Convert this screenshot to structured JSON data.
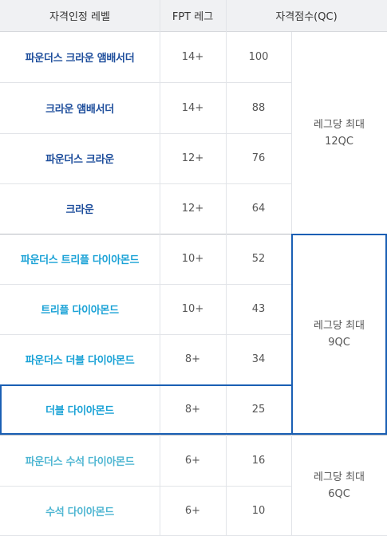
{
  "headers": {
    "level": "자격인정 레벨",
    "fpt_leg": "FPT 레그",
    "qc": "자격점수(QC)"
  },
  "rows": [
    {
      "level": "파운더스 크라운 앰배서더",
      "fpt": "14+",
      "qc": "100",
      "tier": "crown"
    },
    {
      "level": "크라운 앰배서더",
      "fpt": "14+",
      "qc": "88",
      "tier": "crown"
    },
    {
      "level": "파운더스 크라운",
      "fpt": "12+",
      "qc": "76",
      "tier": "crown"
    },
    {
      "level": "크라운",
      "fpt": "12+",
      "qc": "64",
      "tier": "crown"
    },
    {
      "level": "파운더스 트리플 다이아몬드",
      "fpt": "10+",
      "qc": "52",
      "tier": "diamond"
    },
    {
      "level": "트리플 다이아몬드",
      "fpt": "10+",
      "qc": "43",
      "tier": "diamond"
    },
    {
      "level": "파운더스 더블 다이아몬드",
      "fpt": "8+",
      "qc": "34",
      "tier": "diamond"
    },
    {
      "level": "더블 다이아몬드",
      "fpt": "8+",
      "qc": "25",
      "tier": "diamond"
    },
    {
      "level": "파운더스 수석 다이아몬드",
      "fpt": "6+",
      "qc": "16",
      "tier": "emerald"
    },
    {
      "level": "수석 다이아몬드",
      "fpt": "6+",
      "qc": "10",
      "tier": "emerald"
    }
  ],
  "qc_groups": [
    {
      "line1": "레그당 최대",
      "line2": "12QC"
    },
    {
      "line1": "레그당 최대",
      "line2": "9QC"
    },
    {
      "line1": "레그당 최대",
      "line2": "6QC"
    }
  ],
  "colors": {
    "crown": "#1e4e9c",
    "diamond": "#1aa2d6",
    "emerald": "#4fb6d2",
    "highlight_border": "#1a5fb4",
    "header_bg": "#f0f1f3"
  }
}
